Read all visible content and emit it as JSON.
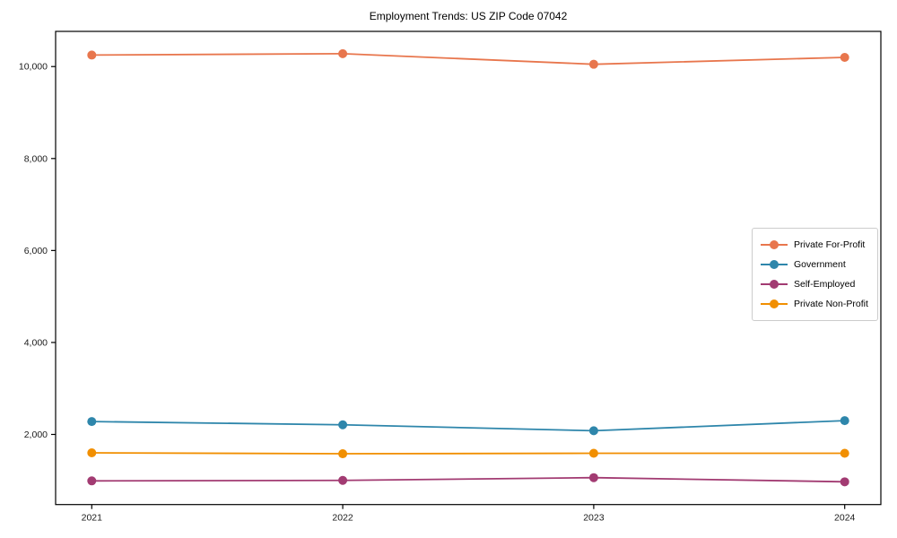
{
  "chart_data": {
    "type": "line",
    "title": "Employment Trends: US ZIP Code 07042",
    "x": [
      2021,
      2022,
      2023,
      2024
    ],
    "x_tick_labels": [
      "2021",
      "2022",
      "2023",
      "2024"
    ],
    "y_ticks": [
      2000,
      4000,
      6000,
      8000,
      10000
    ],
    "y_tick_labels": [
      "2,000",
      "4,000",
      "6,000",
      "8,000",
      "10,000"
    ],
    "ylim": [
      475,
      10765
    ],
    "xlabel": "",
    "ylabel": "",
    "grid": false,
    "legend_position": "center-right",
    "series": [
      {
        "name": "Private For-Profit",
        "color": "#E8764D",
        "values": [
          10250,
          10280,
          10050,
          10200
        ]
      },
      {
        "name": "Government",
        "color": "#2E86AB",
        "values": [
          2280,
          2210,
          2080,
          2300
        ]
      },
      {
        "name": "Self-Employed",
        "color": "#A23B72",
        "values": [
          990,
          1000,
          1060,
          970
        ]
      },
      {
        "name": "Private Non-Profit",
        "color": "#F18F01",
        "values": [
          1600,
          1580,
          1590,
          1590
        ]
      }
    ]
  },
  "colors": {
    "axis": "#000000",
    "tick_label": "#1a1a1a",
    "legend_border": "#cccccc",
    "background": "#ffffff"
  }
}
